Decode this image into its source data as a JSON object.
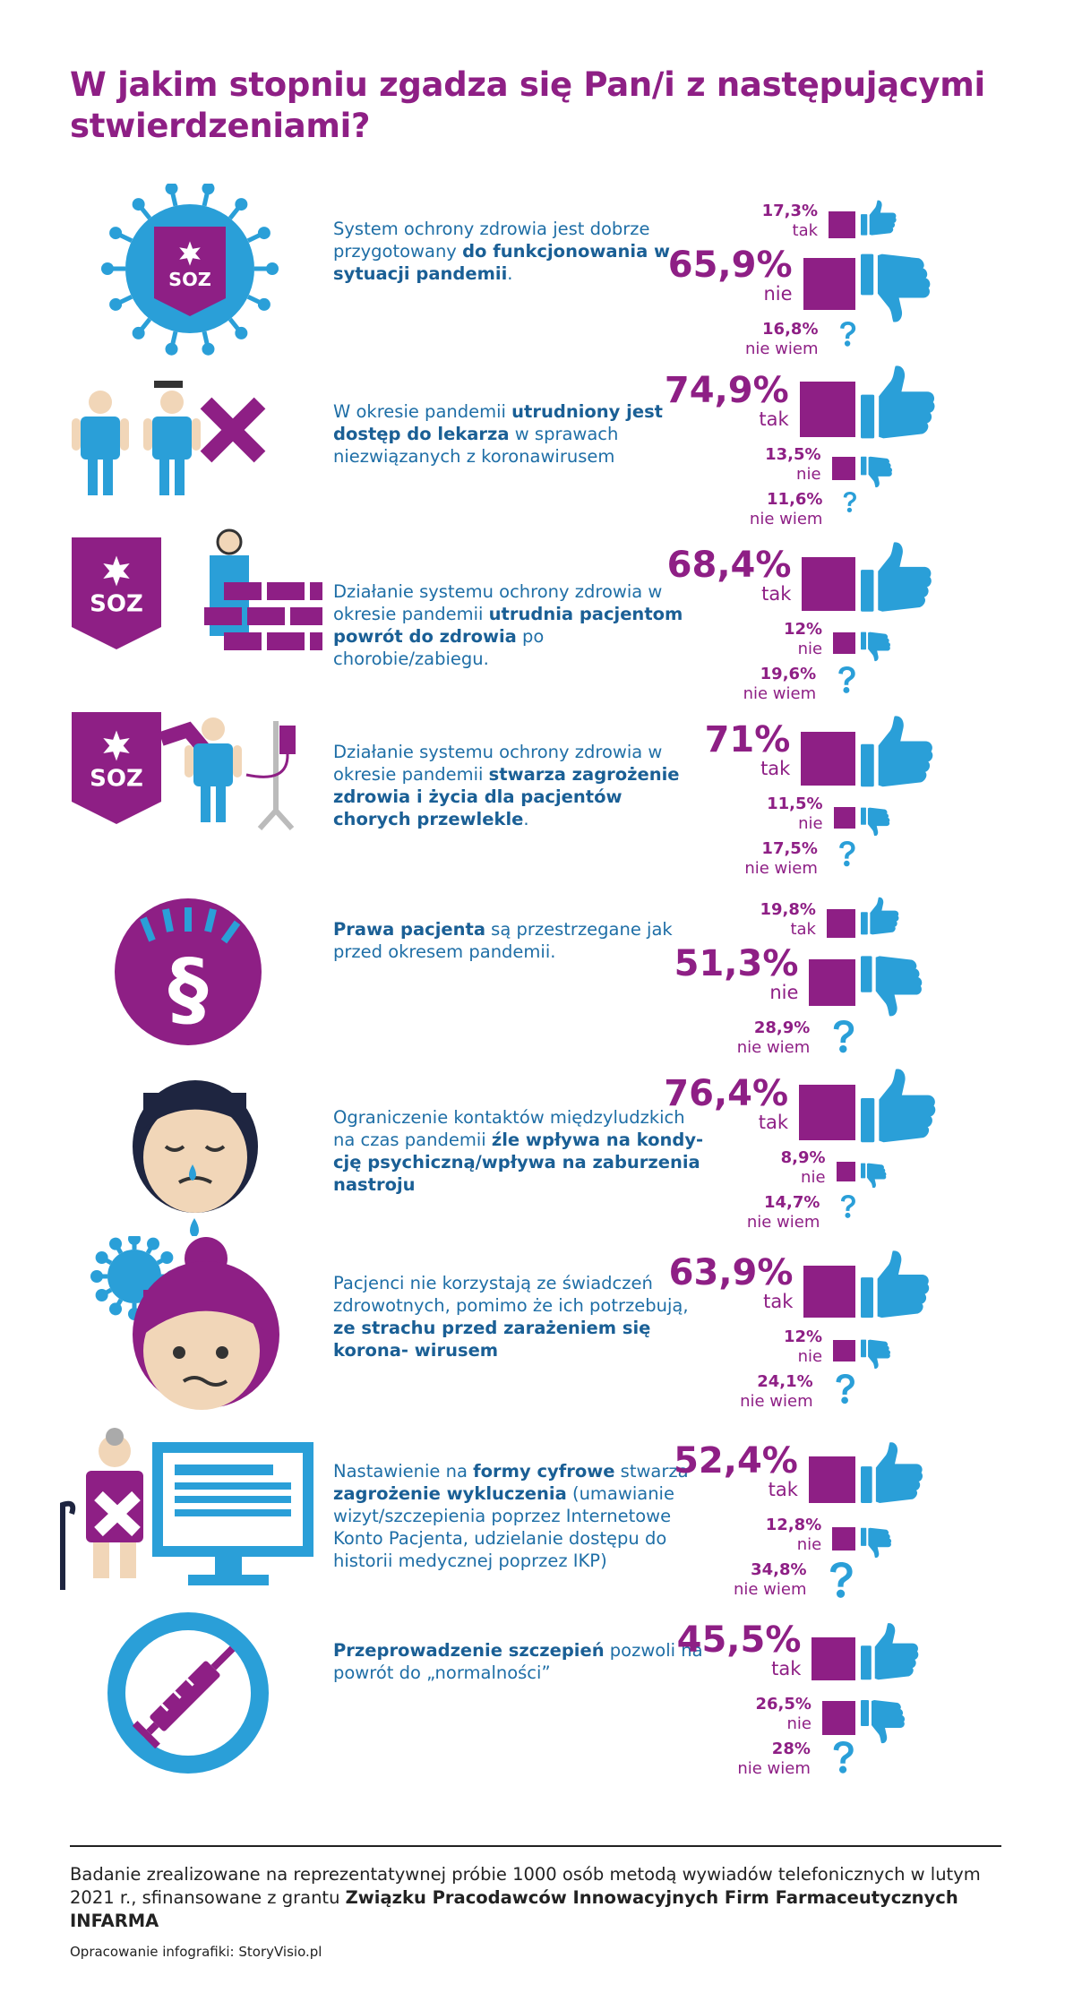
{
  "title": "W jakim stopniu zgadza się Pan/i z następującymi stwierdzeniami?",
  "colors": {
    "purple": "#8e1f85",
    "blue": "#2a9fd8",
    "text_blue": "#1e6ea6"
  },
  "chart_data": {
    "type": "bar",
    "categories": [
      "tak",
      "nie",
      "nie wiem"
    ],
    "items": [
      {
        "icon": "soz-virus-icon",
        "text": [
          [
            "System ochrony zdrowia jest dobrze przygotowany ",
            false
          ],
          [
            "do funkcjonowania w sytuacji pandemii",
            true
          ],
          [
            ".",
            false
          ]
        ],
        "values": [
          17.3,
          65.9,
          16.8
        ],
        "labels": [
          "17,3%",
          "65,9%",
          "16,8%"
        ]
      },
      {
        "icon": "doctors-cross-icon",
        "text": [
          [
            "W okresie pandemii ",
            false
          ],
          [
            "utrudniony jest dostęp do lekarza",
            true
          ],
          [
            " w sprawach niezwiązanych z koronawirusem",
            false
          ]
        ],
        "values": [
          74.9,
          13.5,
          11.6
        ],
        "labels": [
          "74,9%",
          "13,5%",
          "11,6%"
        ]
      },
      {
        "icon": "soz-wall-icon",
        "text": [
          [
            "Działanie systemu ochrony zdrowia w okresie pandemii ",
            false
          ],
          [
            "utrudnia pacjentom powrót do zdrowia",
            true
          ],
          [
            " po chorobie/zabiegu.",
            false
          ]
        ],
        "values": [
          68.4,
          12,
          19.6
        ],
        "labels": [
          "68,4%",
          "12%",
          "19,6%"
        ]
      },
      {
        "icon": "soz-patient-drip-icon",
        "text": [
          [
            "Działanie systemu ochrony zdrowia w okresie pandemii ",
            false
          ],
          [
            "stwarza zagrożenie zdrowia i życia dla pacjentów chorych przewlekle",
            true
          ],
          [
            ".",
            false
          ]
        ],
        "values": [
          71,
          11.5,
          17.5
        ],
        "labels": [
          "71%",
          "11,5%",
          "17,5%"
        ]
      },
      {
        "icon": "paragraph-rights-icon",
        "text": [
          [
            "Prawa pacjenta",
            true
          ],
          [
            " są przestrzegane jak przed okresem pandemii.",
            false
          ]
        ],
        "values": [
          19.8,
          51.3,
          28.9
        ],
        "labels": [
          "19,8%",
          "51,3%",
          "28,9%"
        ]
      },
      {
        "icon": "crying-face-icon",
        "text": [
          [
            "Ograniczenie kontaktów międzyludzkich na czas pandemii ",
            false
          ],
          [
            "źle wpływa na kondy- cję psychiczną/wpływa na zaburzenia nastroju",
            true
          ]
        ],
        "values": [
          76.4,
          8.9,
          14.7
        ],
        "labels": [
          "76,4%",
          "8,9%",
          "14,7%"
        ]
      },
      {
        "icon": "worried-woman-virus-icon",
        "text": [
          [
            "Pacjenci nie korzystają ze świadczeń zdrowotnych, pomimo że ich potrzebują, ",
            false
          ],
          [
            "ze strachu przed zarażeniem się korona- wirusem",
            true
          ]
        ],
        "values": [
          63.9,
          12,
          24.1
        ],
        "labels": [
          "63,9%",
          "12%",
          "24,1%"
        ]
      },
      {
        "icon": "elderly-computer-icon",
        "text": [
          [
            "Nastawienie na ",
            false
          ],
          [
            "formy cyfrowe",
            true
          ],
          [
            " stwarza ",
            false
          ],
          [
            "zagrożenie wykluczenia",
            true
          ],
          [
            " (umawianie wizyt/szczepienia poprzez Internetowe Konto Pacjenta, udzielanie dostępu do historii medycznej poprzez IKP)",
            false
          ]
        ],
        "values": [
          52.4,
          12.8,
          34.8
        ],
        "labels": [
          "52,4%",
          "12,8%",
          "34,8%"
        ]
      },
      {
        "icon": "vaccine-syringe-icon",
        "text": [
          [
            "Przeprowadzenie szczepień",
            true
          ],
          [
            " pozwoli na powrót do „normalności”",
            false
          ]
        ],
        "values": [
          45.5,
          26.5,
          28
        ],
        "labels": [
          "45,5%",
          "26,5%",
          "28%"
        ]
      }
    ]
  },
  "footer": {
    "note_plain": "Badanie zrealizowane na reprezentatywnej próbie 1000 osób metodą wywiadów telefonicznych w lutym 2021 r., sfinansowane z grantu ",
    "note_bold": "Związku Pracodawców Innowacyjnych Firm Farmaceutycznych INFARMA",
    "credit": "Opracowanie infografiki: StoryVisio.pl"
  }
}
